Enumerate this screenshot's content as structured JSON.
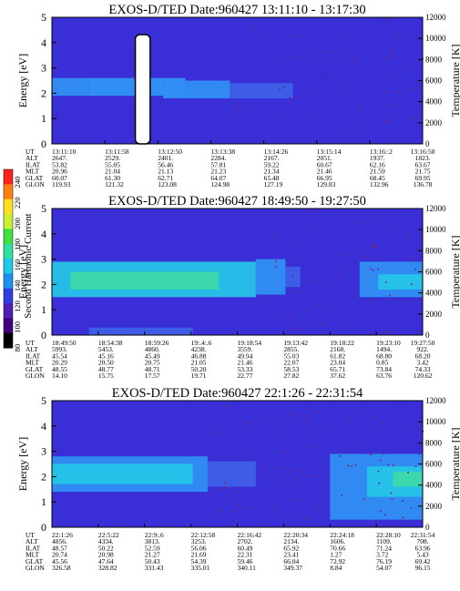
{
  "colorbar": {
    "label": "Second Harmonic Current",
    "ticks": [
      "240",
      "220",
      "200",
      "180",
      "160",
      "140",
      "120",
      "100",
      "80"
    ]
  },
  "chart_data": [
    {
      "type": "heatmap",
      "title": "EXOS-D/TED   Date:960427   13:11:10 - 13:17:30",
      "ylabel": "Energy [eV]",
      "y2label": "Temperature [K]",
      "ylim": [
        0,
        5
      ],
      "yticks": [
        "0",
        "1",
        "2",
        "3",
        "4",
        "5"
      ],
      "y2lim": [
        0,
        12000
      ],
      "y2ticks": [
        "0",
        "2000",
        "4000",
        "6000",
        "8000",
        "10000",
        "12000"
      ],
      "table_rows": [
        "UT",
        "ALT",
        "ILAT",
        "MLT",
        "GLAT",
        "GLON"
      ],
      "table_cols": [
        [
          "13:11:10",
          "2647.",
          "53.82",
          "20.96",
          "60.07",
          "119.93"
        ],
        [
          "13:11:58",
          "2529.",
          "55.05",
          "21.04",
          "61.30",
          "121.32"
        ],
        [
          "13:12:50",
          "2401.",
          "56.46",
          "21.13",
          "62.71",
          "123.08"
        ],
        [
          "13:13:38",
          "2284.",
          "57.81",
          "21.23",
          "64.07",
          "124.98"
        ],
        [
          "13:14:26",
          "2167.",
          "59.22",
          "21.34",
          "65.48",
          "127.19"
        ],
        [
          "13:15:14",
          "2051.",
          "60.67",
          "21.46",
          "66.95",
          "129.83"
        ],
        [
          "13:16::2",
          "1937.",
          "62.16",
          "21.59",
          "68.45",
          "132.96"
        ],
        [
          "13:16:50",
          "1823.",
          "63.67",
          "21.75",
          "69.95",
          "136.78"
        ]
      ],
      "bands": [
        {
          "t0": 0.0,
          "t1": 0.1,
          "e0": 1.9,
          "e1": 2.6,
          "level": "light"
        },
        {
          "t0": 0.1,
          "t1": 0.3,
          "e0": 1.9,
          "e1": 2.6,
          "level": "strong"
        },
        {
          "t0": 0.3,
          "t1": 0.36,
          "e0": 1.8,
          "e1": 2.6,
          "level": "strong"
        },
        {
          "t0": 0.36,
          "t1": 0.48,
          "e0": 1.8,
          "e1": 2.5,
          "level": "light"
        },
        {
          "t0": 0.48,
          "t1": 0.65,
          "e0": 1.8,
          "e1": 2.4,
          "level": "faint"
        }
      ],
      "gap": {
        "t": 0.245,
        "halfwidth": 0.02,
        "level": "white"
      },
      "noise_level": 0.18,
      "noise_start": 0.5
    },
    {
      "type": "heatmap",
      "title": "EXOS-D/TED   Date:960427   18:49:50 - 19:27:50",
      "ylabel": "Energy [eV]",
      "y2label": "Temperature [K]",
      "ylim": [
        0,
        5
      ],
      "yticks": [
        "0",
        "1",
        "2",
        "3",
        "4",
        "5"
      ],
      "y2lim": [
        0,
        12000
      ],
      "y2ticks": [
        "0",
        "2000",
        "4000",
        "6000",
        "8000",
        "10000",
        "12000"
      ],
      "table_rows": [
        "UT",
        "ALT",
        "ILAT",
        "MLT",
        "GLAT",
        "GLON"
      ],
      "table_cols": [
        [
          "18:49:50",
          "5993.",
          "45.54",
          "20.29",
          "48.55",
          "14.10"
        ],
        [
          "18:54:38",
          "5453.",
          "45.16",
          "20.50",
          "48.77",
          "15.75"
        ],
        [
          "18:59:26",
          "4860.",
          "45.49",
          "20.75",
          "48.71",
          "17.57"
        ],
        [
          "19:.4:.6",
          "4238.",
          "46.88",
          "21.05",
          "50.20",
          "19.71"
        ],
        [
          "19:18:54",
          "3559.",
          "49.94",
          "21.46",
          "53.33",
          "22.77"
        ],
        [
          "19:13:42",
          "2855.",
          "55.03",
          "22.07",
          "58.53",
          "27.82"
        ],
        [
          "19:18:22",
          "2168.",
          "61.82",
          "23.04",
          "65.71",
          "37.62"
        ],
        [
          "19:23:10",
          "1494.",
          "68.80",
          "0.85",
          "73.84",
          "63.76"
        ],
        [
          "19:27:50",
          "922.",
          "68.20",
          "3.42",
          "74.33",
          "120.62"
        ]
      ],
      "bands": [
        {
          "t0": 0.0,
          "t1": 0.55,
          "e0": 1.5,
          "e1": 2.9,
          "level": "cyan"
        },
        {
          "t0": 0.05,
          "t1": 0.45,
          "e0": 1.8,
          "e1": 2.5,
          "level": "green"
        },
        {
          "t0": 0.55,
          "t1": 0.63,
          "e0": 1.6,
          "e1": 3.0,
          "level": "light"
        },
        {
          "t0": 0.63,
          "t1": 0.67,
          "e0": 1.9,
          "e1": 2.7,
          "level": "faint"
        },
        {
          "t0": 0.83,
          "t1": 1.0,
          "e0": 1.5,
          "e1": 2.9,
          "level": "light"
        },
        {
          "t0": 0.88,
          "t1": 1.0,
          "e0": 1.8,
          "e1": 2.4,
          "level": "cyan"
        },
        {
          "t0": 0.1,
          "t1": 0.38,
          "e0": 0.0,
          "e1": 0.3,
          "level": "faint"
        }
      ],
      "noise_level": 0.22,
      "noise_start": 0.55
    },
    {
      "type": "heatmap",
      "title": "EXOS-D/TED   Date:960427   22:1:26 - 22:31:54",
      "ylabel": "Energy [eV]",
      "y2label": "Temperature [K]",
      "ylim": [
        0,
        5
      ],
      "yticks": [
        "0",
        "1",
        "2",
        "3",
        "4",
        "5"
      ],
      "y2lim": [
        0,
        12000
      ],
      "y2ticks": [
        "0",
        "2000",
        "4000",
        "6000",
        "8000",
        "10000",
        "12000"
      ],
      "table_rows": [
        "UT",
        "ALT",
        "ILAT",
        "MLT",
        "GLAT",
        "GLON"
      ],
      "table_cols": [
        [
          "22:1:26",
          "4856.",
          "48.57",
          "20.74",
          "45.56",
          "326.58"
        ],
        [
          "22:5:22",
          "4334.",
          "50.22",
          "20.98",
          "47.64",
          "328.82"
        ],
        [
          "22:9:.6",
          "3813.",
          "52.59",
          "21.27",
          "50.43",
          "331.43"
        ],
        [
          "22:12:58",
          "3253.",
          "56.06",
          "21.69",
          "54.39",
          "335.01"
        ],
        [
          "22:16:42",
          "2702.",
          "60.49",
          "22.31",
          "59.46",
          "340.11"
        ],
        [
          "22:20:34",
          "2134.",
          "65.92",
          "23.41",
          "66.04",
          "349.37"
        ],
        [
          "22:24:18",
          "1606.",
          "70.66",
          "1.27",
          "72.92",
          "8.84"
        ],
        [
          "22:28:10",
          "1109.",
          "71.24",
          "3.72",
          "76.19",
          "54.07"
        ],
        [
          "22:31:54",
          "708.",
          "63.96",
          "5.43",
          "69.42",
          "96.15"
        ]
      ],
      "bands": [
        {
          "t0": 0.0,
          "t1": 0.42,
          "e0": 1.4,
          "e1": 2.8,
          "level": "light"
        },
        {
          "t0": 0.0,
          "t1": 0.38,
          "e0": 1.7,
          "e1": 2.5,
          "level": "cyan"
        },
        {
          "t0": 0.42,
          "t1": 0.55,
          "e0": 1.6,
          "e1": 2.6,
          "level": "faint"
        },
        {
          "t0": 0.75,
          "t1": 1.0,
          "e0": 0.3,
          "e1": 2.9,
          "level": "light"
        },
        {
          "t0": 0.85,
          "t1": 1.0,
          "e0": 1.2,
          "e1": 2.4,
          "level": "cyan"
        },
        {
          "t0": 0.92,
          "t1": 1.0,
          "e0": 1.6,
          "e1": 2.2,
          "level": "green"
        }
      ],
      "noise_level": 0.35,
      "noise_start": 0.45
    }
  ]
}
